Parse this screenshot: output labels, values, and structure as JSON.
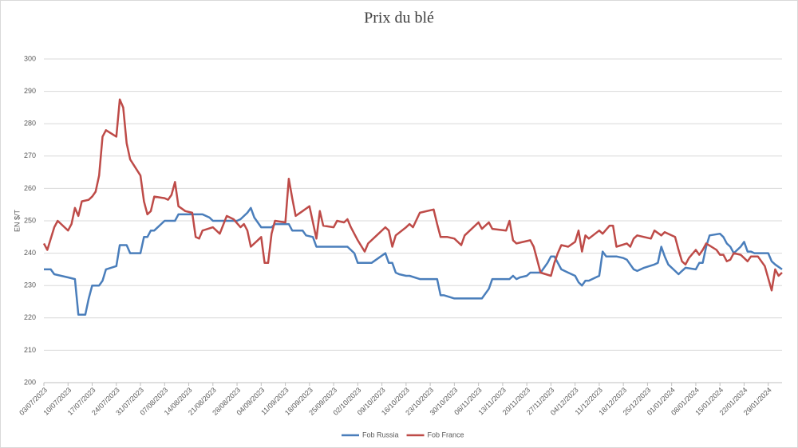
{
  "chart_data": {
    "type": "line",
    "title": "Prix du blé",
    "ylabel": "EN $/T",
    "ylim": [
      200,
      300
    ],
    "yticks": [
      200,
      210,
      220,
      230,
      240,
      250,
      260,
      270,
      280,
      290,
      300
    ],
    "grid": true,
    "xlim": [
      "03/07/2023",
      "02/02/2024"
    ],
    "xticks": [
      "03/07/2023",
      "10/07/2023",
      "17/07/2023",
      "24/07/2023",
      "31/07/2023",
      "07/08/2023",
      "14/08/2023",
      "21/08/2023",
      "28/08/2023",
      "04/09/2023",
      "11/09/2023",
      "18/09/2023",
      "25/09/2023",
      "02/10/2023",
      "09/10/2023",
      "16/10/2023",
      "23/10/2023",
      "30/10/2023",
      "06/11/2023",
      "13/11/2023",
      "20/11/2023",
      "27/11/2023",
      "04/12/2023",
      "11/12/2023",
      "18/12/2023",
      "25/12/2023",
      "01/01/2024",
      "08/01/2024",
      "15/01/2024",
      "22/01/2024",
      "29/01/2024"
    ],
    "legend": "bottom",
    "series": [
      {
        "name": "Fob Russia",
        "color": "#4a7ebb",
        "x": [
          "03/07/2023",
          "05/07/2023",
          "06/07/2023",
          "10/07/2023",
          "12/07/2023",
          "13/07/2023",
          "15/07/2023",
          "16/07/2023",
          "17/07/2023",
          "19/07/2023",
          "20/07/2023",
          "21/07/2023",
          "24/07/2023",
          "25/07/2023",
          "27/07/2023",
          "28/07/2023",
          "31/07/2023",
          "01/08/2023",
          "02/08/2023",
          "03/08/2023",
          "04/08/2023",
          "07/08/2023",
          "10/08/2023",
          "11/08/2023",
          "18/08/2023",
          "20/08/2023",
          "21/08/2023",
          "28/08/2023",
          "29/08/2023",
          "31/08/2023",
          "01/09/2023",
          "02/09/2023",
          "04/09/2023",
          "07/09/2023",
          "08/09/2023",
          "12/09/2023",
          "13/09/2023",
          "16/09/2023",
          "17/09/2023",
          "19/09/2023",
          "20/09/2023",
          "29/09/2023",
          "01/10/2023",
          "02/10/2023",
          "06/10/2023",
          "08/10/2023",
          "10/10/2023",
          "11/10/2023",
          "12/10/2023",
          "13/10/2023",
          "14/10/2023",
          "16/10/2023",
          "17/10/2023",
          "20/10/2023",
          "25/10/2023",
          "26/10/2023",
          "27/10/2023",
          "30/10/2023",
          "07/11/2023",
          "09/11/2023",
          "10/11/2023",
          "15/11/2023",
          "16/11/2023",
          "17/11/2023",
          "18/11/2023",
          "20/11/2023",
          "21/11/2023",
          "24/11/2023",
          "26/11/2023",
          "27/11/2023",
          "28/11/2023",
          "30/11/2023",
          "02/12/2023",
          "04/12/2023",
          "05/12/2023",
          "06/12/2023",
          "07/12/2023",
          "08/12/2023",
          "10/12/2023",
          "11/12/2023",
          "12/12/2023",
          "13/12/2023",
          "16/12/2023",
          "18/12/2023",
          "19/12/2023",
          "20/12/2023",
          "21/12/2023",
          "22/12/2023",
          "24/12/2023",
          "27/12/2023",
          "28/12/2023",
          "29/12/2023",
          "30/12/2023",
          "31/12/2023",
          "02/01/2024",
          "03/01/2024",
          "04/01/2024",
          "05/01/2024",
          "08/01/2024",
          "09/01/2024",
          "10/01/2024",
          "11/01/2024",
          "12/01/2024",
          "15/01/2024",
          "16/01/2024",
          "17/01/2024",
          "18/01/2024",
          "19/01/2024",
          "21/01/2024",
          "22/01/2024",
          "23/01/2024",
          "24/01/2024",
          "25/01/2024",
          "29/01/2024",
          "30/01/2024",
          "31/01/2024",
          "02/02/2024"
        ],
        "values": [
          235,
          235,
          233.5,
          232.5,
          232,
          221,
          221,
          226,
          230,
          230,
          231.5,
          235,
          236,
          242.5,
          242.5,
          240,
          240,
          245,
          245,
          247,
          247,
          250,
          250,
          252,
          252,
          251,
          250,
          250,
          250.5,
          252.5,
          254,
          251,
          248,
          248,
          249,
          249,
          247,
          247,
          245.5,
          245,
          242,
          242,
          240,
          237,
          237,
          238.5,
          240,
          237,
          237,
          234,
          233.5,
          233,
          233,
          232,
          232,
          227,
          227,
          226,
          226,
          229,
          232,
          232,
          233,
          232,
          232.5,
          233,
          234,
          234,
          237,
          239,
          239,
          235,
          234,
          233,
          231,
          230,
          231.5,
          231.5,
          232.5,
          233,
          240.5,
          239,
          239,
          238.5,
          238,
          236.5,
          235,
          234.5,
          235.5,
          236.5,
          237,
          242,
          239,
          236.5,
          234.5,
          233.5,
          234.5,
          235.5,
          235,
          237,
          237,
          242,
          245.5,
          246,
          245,
          243,
          242,
          240,
          242,
          243.5,
          240.5,
          240.5,
          240,
          240,
          237.5,
          236.5,
          235
        ]
      },
      {
        "name": "Fob France",
        "color": "#be4b48",
        "x": [
          "03/07/2023",
          "04/07/2023",
          "06/07/2023",
          "07/07/2023",
          "09/07/2023",
          "10/07/2023",
          "11/07/2023",
          "12/07/2023",
          "13/07/2023",
          "14/07/2023",
          "16/07/2023",
          "17/07/2023",
          "18/07/2023",
          "19/07/2023",
          "20/07/2023",
          "21/07/2023",
          "24/07/2023",
          "25/07/2023",
          "26/07/2023",
          "27/07/2023",
          "28/07/2023",
          "31/07/2023",
          "01/08/2023",
          "02/08/2023",
          "03/08/2023",
          "04/08/2023",
          "07/08/2023",
          "08/08/2023",
          "09/08/2023",
          "10/08/2023",
          "11/08/2023",
          "13/08/2023",
          "15/08/2023",
          "16/08/2023",
          "17/08/2023",
          "18/08/2023",
          "21/08/2023",
          "23/08/2023",
          "25/08/2023",
          "27/08/2023",
          "29/08/2023",
          "30/08/2023",
          "31/08/2023",
          "01/09/2023",
          "03/09/2023",
          "04/09/2023",
          "05/09/2023",
          "06/09/2023",
          "07/09/2023",
          "08/09/2023",
          "11/09/2023",
          "12/09/2023",
          "13/09/2023",
          "14/09/2023",
          "16/09/2023",
          "18/09/2023",
          "20/09/2023",
          "21/09/2023",
          "22/09/2023",
          "25/09/2023",
          "26/09/2023",
          "28/09/2023",
          "29/09/2023",
          "30/09/2023",
          "02/10/2023",
          "04/10/2023",
          "05/10/2023",
          "08/10/2023",
          "10/10/2023",
          "11/10/2023",
          "12/10/2023",
          "13/10/2023",
          "16/10/2023",
          "17/10/2023",
          "18/10/2023",
          "20/10/2023",
          "24/10/2023",
          "25/10/2023",
          "26/10/2023",
          "28/10/2023",
          "30/10/2023",
          "01/11/2023",
          "02/11/2023",
          "06/11/2023",
          "07/11/2023",
          "09/11/2023",
          "10/11/2023",
          "14/11/2023",
          "15/11/2023",
          "16/11/2023",
          "17/11/2023",
          "21/11/2023",
          "22/11/2023",
          "24/11/2023",
          "27/11/2023",
          "28/11/2023",
          "29/11/2023",
          "30/11/2023",
          "02/12/2023",
          "04/12/2023",
          "05/12/2023",
          "06/12/2023",
          "07/12/2023",
          "08/12/2023",
          "11/12/2023",
          "12/12/2023",
          "14/12/2023",
          "15/12/2023",
          "16/12/2023",
          "19/12/2023",
          "20/12/2023",
          "21/12/2023",
          "22/12/2023",
          "24/12/2023",
          "26/12/2023",
          "27/12/2023",
          "29/12/2023",
          "30/12/2023",
          "02/01/2024",
          "03/01/2024",
          "04/01/2024",
          "05/01/2024",
          "06/01/2024",
          "08/01/2024",
          "09/01/2024",
          "10/01/2024",
          "11/01/2024",
          "14/01/2024",
          "15/01/2024",
          "16/01/2024",
          "17/01/2024",
          "18/01/2024",
          "19/01/2024",
          "21/01/2024",
          "22/01/2024",
          "23/01/2024",
          "24/01/2024",
          "26/01/2024",
          "27/01/2024",
          "28/01/2024",
          "30/01/2024",
          "31/01/2024",
          "01/02/2024",
          "02/02/2024"
        ],
        "values": [
          243,
          241,
          248,
          250,
          248,
          247,
          249,
          254,
          251.5,
          256,
          256.5,
          257.5,
          259,
          264,
          276,
          278,
          276,
          287.5,
          285,
          274,
          269,
          264,
          256,
          252,
          253,
          257.5,
          257,
          256.5,
          258,
          262,
          254.5,
          253,
          252.5,
          245,
          244.5,
          247,
          248,
          246,
          251.5,
          250.5,
          248,
          249,
          247,
          242,
          244,
          245,
          237,
          237,
          246,
          250,
          249.5,
          263,
          257,
          251.5,
          253,
          254.5,
          244.5,
          253,
          248.5,
          248,
          250,
          249.5,
          250.5,
          248,
          244,
          240.5,
          243,
          246,
          248,
          247,
          242,
          245.5,
          248,
          249,
          248,
          252.5,
          253.5,
          249,
          245,
          245,
          244.5,
          242.5,
          245.5,
          249.5,
          247.5,
          249.5,
          247.5,
          247,
          250,
          244,
          243,
          244,
          242,
          234,
          233,
          237,
          240,
          242.5,
          242,
          243.5,
          247,
          240.5,
          245.5,
          244.5,
          247,
          246,
          248.5,
          248.5,
          242,
          243,
          242,
          244.5,
          245.5,
          245,
          244.5,
          247,
          245.5,
          246.5,
          245,
          241,
          237.5,
          236.5,
          238.5,
          241,
          239.5,
          241,
          243,
          241,
          239.5,
          239.5,
          237.5,
          238,
          240,
          239.5,
          238.5,
          237.5,
          239,
          239,
          237.5,
          236,
          228.5,
          235,
          233,
          234
        ]
      }
    ]
  }
}
